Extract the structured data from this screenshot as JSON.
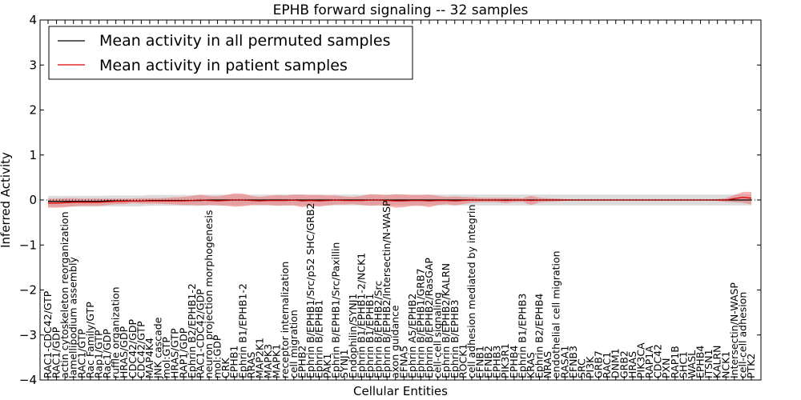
{
  "chart_data": {
    "type": "line",
    "title": "EPHB forward signaling -- 32 samples",
    "xlabel": "Cellular Entities",
    "ylabel": "Inferred Activity",
    "ylim": [
      -4,
      4
    ],
    "yticks": [
      -4,
      -3,
      -2,
      -1,
      0,
      1,
      2,
      3,
      4
    ],
    "grid": false,
    "legend_position": "top-left",
    "categories": [
      "RAC1-CDC42/GTP",
      "RAC1/GDP",
      "actin cytoskeleton reorganization",
      "lamellipodium assembly",
      "RAC1/GTP",
      "Rac Family/GTP",
      "Rap1/GTP",
      "Rac1/GDP",
      "ruffle organization",
      "HRAS/GDP",
      "CDC42/GDP",
      "CDC42/GTP",
      "MAP4K4",
      "JNK cascade",
      "mol:GTP",
      "HRAS/GTP",
      "RAP1/GDP",
      "Ephrin B2/EPHB1-2",
      "RAC1-CDC42/GDP",
      "neuron projection morphogenesis",
      "mol:GDP",
      "CRK",
      "EPHB1",
      "Ephrin B1/EPHB1-2",
      "RRAS",
      "MAP2K1",
      "MAPK3",
      "MAPK1",
      "receptor internalization",
      "cell migration",
      "EPHB2",
      "Ephrin B/EPHB1/Src/p52 SHC/GRB2",
      "Ephrin B/EPHB1",
      "PAK1",
      "Ephrin B/EPHB1/Src/Paxillin",
      "SYNJ1",
      "Endophilin/SYNJ1",
      "Ephrin B1/EPHB1-2/NCK1",
      "Ephrin B1/EPHB1",
      "Ephrin B/EPHB2/Src",
      "Ephrin B/EPHB2/Intersectin/N-WASP",
      "axon guidance",
      "EFNA5",
      "Ephrin A5/EPHB2",
      "Ephrin B/EPHB1/GRB7",
      "Ephrin B/EPHB2/RasGAP",
      "cell-cell signaling",
      "Ephrin B/EPHB2/KALRN",
      "Ephrin B/EPHB3",
      "ROCK1",
      "cell adhesion mediated by integrin",
      "EFNB1",
      "EFNB2",
      "EPHB3",
      "PIK3R1",
      "EPHB4",
      "Ephrin B1/EPHB3",
      "KRAS",
      "Ephrin B2/EPHB4",
      "NRAS",
      "endothelial cell migration",
      "RASA1",
      "EFNB3",
      "SRC",
      "PI3K",
      "GRB7",
      "RAC1",
      "DNM1",
      "GRB2",
      "HRAS",
      "PIK3CA",
      "RAP1A",
      "CDC42",
      "PXN",
      "RAP1B",
      "SHC1",
      "WASL",
      "EPHB4",
      "ITSN1",
      "KALRN",
      "NCK1",
      "Intersectin/N-WASP",
      "cell-cell adhesion",
      "PTK2"
    ],
    "series": [
      {
        "name": "Mean activity in all permuted samples",
        "color": "#000000",
        "values": [
          -0.03,
          -0.03,
          -0.03,
          -0.03,
          -0.03,
          -0.03,
          -0.03,
          -0.02,
          -0.02,
          -0.02,
          -0.02,
          -0.02,
          -0.01,
          -0.01,
          -0.01,
          -0.01,
          -0.01,
          -0.01,
          -0.01,
          0.0,
          0.0,
          0.0,
          0.0,
          0.0,
          0.0,
          0.0,
          0.0,
          0.0,
          0.0,
          0.0,
          0.0,
          0.0,
          0.0,
          0.0,
          0.0,
          0.0,
          0.0,
          0.0,
          0.0,
          0.0,
          0.0,
          0.0,
          0.0,
          0.0,
          0.0,
          0.0,
          0.0,
          0.0,
          0.0,
          0.0,
          0.0,
          0.0,
          0.0,
          0.0,
          0.0,
          0.0,
          0.0,
          0.0,
          0.0,
          0.0,
          0.0,
          0.0,
          0.0,
          0.0,
          0.0,
          0.0,
          0.0,
          0.0,
          0.0,
          0.0,
          0.0,
          0.0,
          0.0,
          0.0,
          0.0,
          0.0,
          0.0,
          0.0,
          0.0,
          0.0,
          0.0,
          0.0,
          0.0,
          0.0
        ]
      },
      {
        "name": "Mean activity in patient samples",
        "color": "#dd0000",
        "values": [
          -0.07,
          -0.07,
          -0.06,
          -0.05,
          -0.05,
          -0.05,
          -0.05,
          -0.04,
          -0.03,
          -0.03,
          -0.02,
          -0.02,
          -0.02,
          -0.02,
          -0.02,
          -0.02,
          -0.02,
          -0.01,
          0.0,
          -0.01,
          -0.02,
          -0.01,
          0.0,
          0.0,
          -0.01,
          -0.02,
          -0.01,
          -0.01,
          -0.01,
          0.0,
          -0.02,
          -0.01,
          -0.02,
          -0.01,
          0.0,
          -0.01,
          -0.01,
          -0.01,
          0.0,
          0.0,
          -0.01,
          -0.02,
          -0.02,
          -0.01,
          -0.01,
          -0.02,
          -0.01,
          -0.01,
          -0.02,
          -0.01,
          0.0,
          0.0,
          0.0,
          0.0,
          -0.01,
          0.0,
          0.0,
          -0.01,
          0.0,
          0.0,
          0.0,
          0.0,
          0.0,
          0.0,
          0.0,
          0.0,
          0.0,
          0.0,
          0.0,
          0.0,
          0.0,
          0.0,
          0.0,
          0.0,
          0.0,
          0.0,
          0.0,
          0.0,
          0.0,
          0.0,
          0.0,
          0.03,
          0.06,
          0.04
        ]
      }
    ],
    "bands": [
      {
        "series": "Mean activity in all permuted samples",
        "color": "#bfbfbf",
        "half_width": [
          0.12,
          0.12,
          0.12,
          0.12,
          0.12,
          0.12,
          0.12,
          0.12,
          0.12,
          0.12,
          0.12,
          0.12,
          0.12,
          0.12,
          0.12,
          0.12,
          0.12,
          0.12,
          0.12,
          0.12,
          0.12,
          0.12,
          0.12,
          0.12,
          0.12,
          0.12,
          0.12,
          0.12,
          0.12,
          0.12,
          0.12,
          0.12,
          0.12,
          0.12,
          0.12,
          0.12,
          0.12,
          0.12,
          0.12,
          0.12,
          0.12,
          0.12,
          0.12,
          0.12,
          0.12,
          0.12,
          0.12,
          0.12,
          0.12,
          0.12,
          0.12,
          0.12,
          0.12,
          0.12,
          0.12,
          0.12,
          0.12,
          0.12,
          0.12,
          0.12,
          0.12,
          0.12,
          0.12,
          0.12,
          0.12,
          0.12,
          0.12,
          0.12,
          0.12,
          0.12,
          0.12,
          0.12,
          0.12,
          0.12,
          0.12,
          0.12,
          0.12,
          0.12,
          0.12,
          0.12,
          0.12,
          0.12,
          0.12,
          0.12
        ]
      },
      {
        "series": "Mean activity in patient samples",
        "color": "#ee6666",
        "half_width": [
          0.1,
          0.1,
          0.1,
          0.09,
          0.08,
          0.08,
          0.08,
          0.07,
          0.06,
          0.06,
          0.05,
          0.06,
          0.06,
          0.06,
          0.07,
          0.08,
          0.09,
          0.1,
          0.12,
          0.1,
          0.1,
          0.12,
          0.15,
          0.14,
          0.1,
          0.09,
          0.1,
          0.12,
          0.11,
          0.12,
          0.14,
          0.12,
          0.13,
          0.11,
          0.1,
          0.09,
          0.08,
          0.1,
          0.13,
          0.12,
          0.12,
          0.15,
          0.14,
          0.12,
          0.12,
          0.14,
          0.1,
          0.08,
          0.1,
          0.08,
          0.06,
          0.05,
          0.05,
          0.05,
          0.06,
          0.05,
          0.04,
          0.1,
          0.05,
          0.04,
          0.03,
          0.02,
          0.01,
          0.01,
          0.01,
          0.01,
          0.01,
          0.01,
          0.01,
          0.01,
          0.01,
          0.01,
          0.01,
          0.01,
          0.01,
          0.01,
          0.01,
          0.01,
          0.01,
          0.02,
          0.04,
          0.08,
          0.12,
          0.14
        ]
      }
    ]
  }
}
